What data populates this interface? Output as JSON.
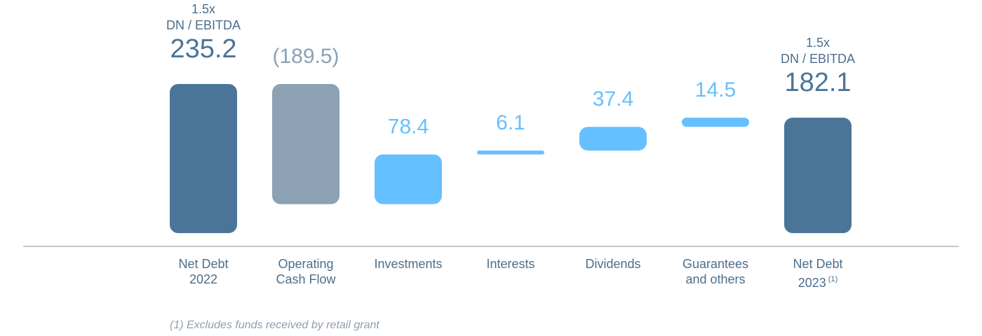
{
  "chart_data": {
    "type": "waterfall",
    "categories": [
      "Net Debt\n2022",
      "Operating\nCash Flow",
      "Investments",
      "Interests",
      "Dividends",
      "Guarantees\nand others",
      "Net Debt\n2023"
    ],
    "superscripts": [
      null,
      null,
      null,
      null,
      null,
      null,
      "(1)"
    ],
    "kinds": [
      "total",
      "delta",
      "delta",
      "delta",
      "delta",
      "delta",
      "total"
    ],
    "values": [
      235.2,
      -189.5,
      78.4,
      6.1,
      37.4,
      14.5,
      182.1
    ],
    "value_labels": [
      "235.2",
      "(189.5)",
      "78.4",
      "6.1",
      "37.4",
      "14.5",
      "182.1"
    ],
    "top_notes": [
      [
        "1.5x",
        "DN / EBITDA"
      ],
      null,
      null,
      null,
      null,
      null,
      [
        "1.5x",
        "DN / EBITDA"
      ]
    ],
    "colors": {
      "total": "#4a7598",
      "decrease": "#8ca1b4",
      "increase": "#66bfff"
    },
    "footnote": "(1) Excludes funds received by retail grant"
  }
}
